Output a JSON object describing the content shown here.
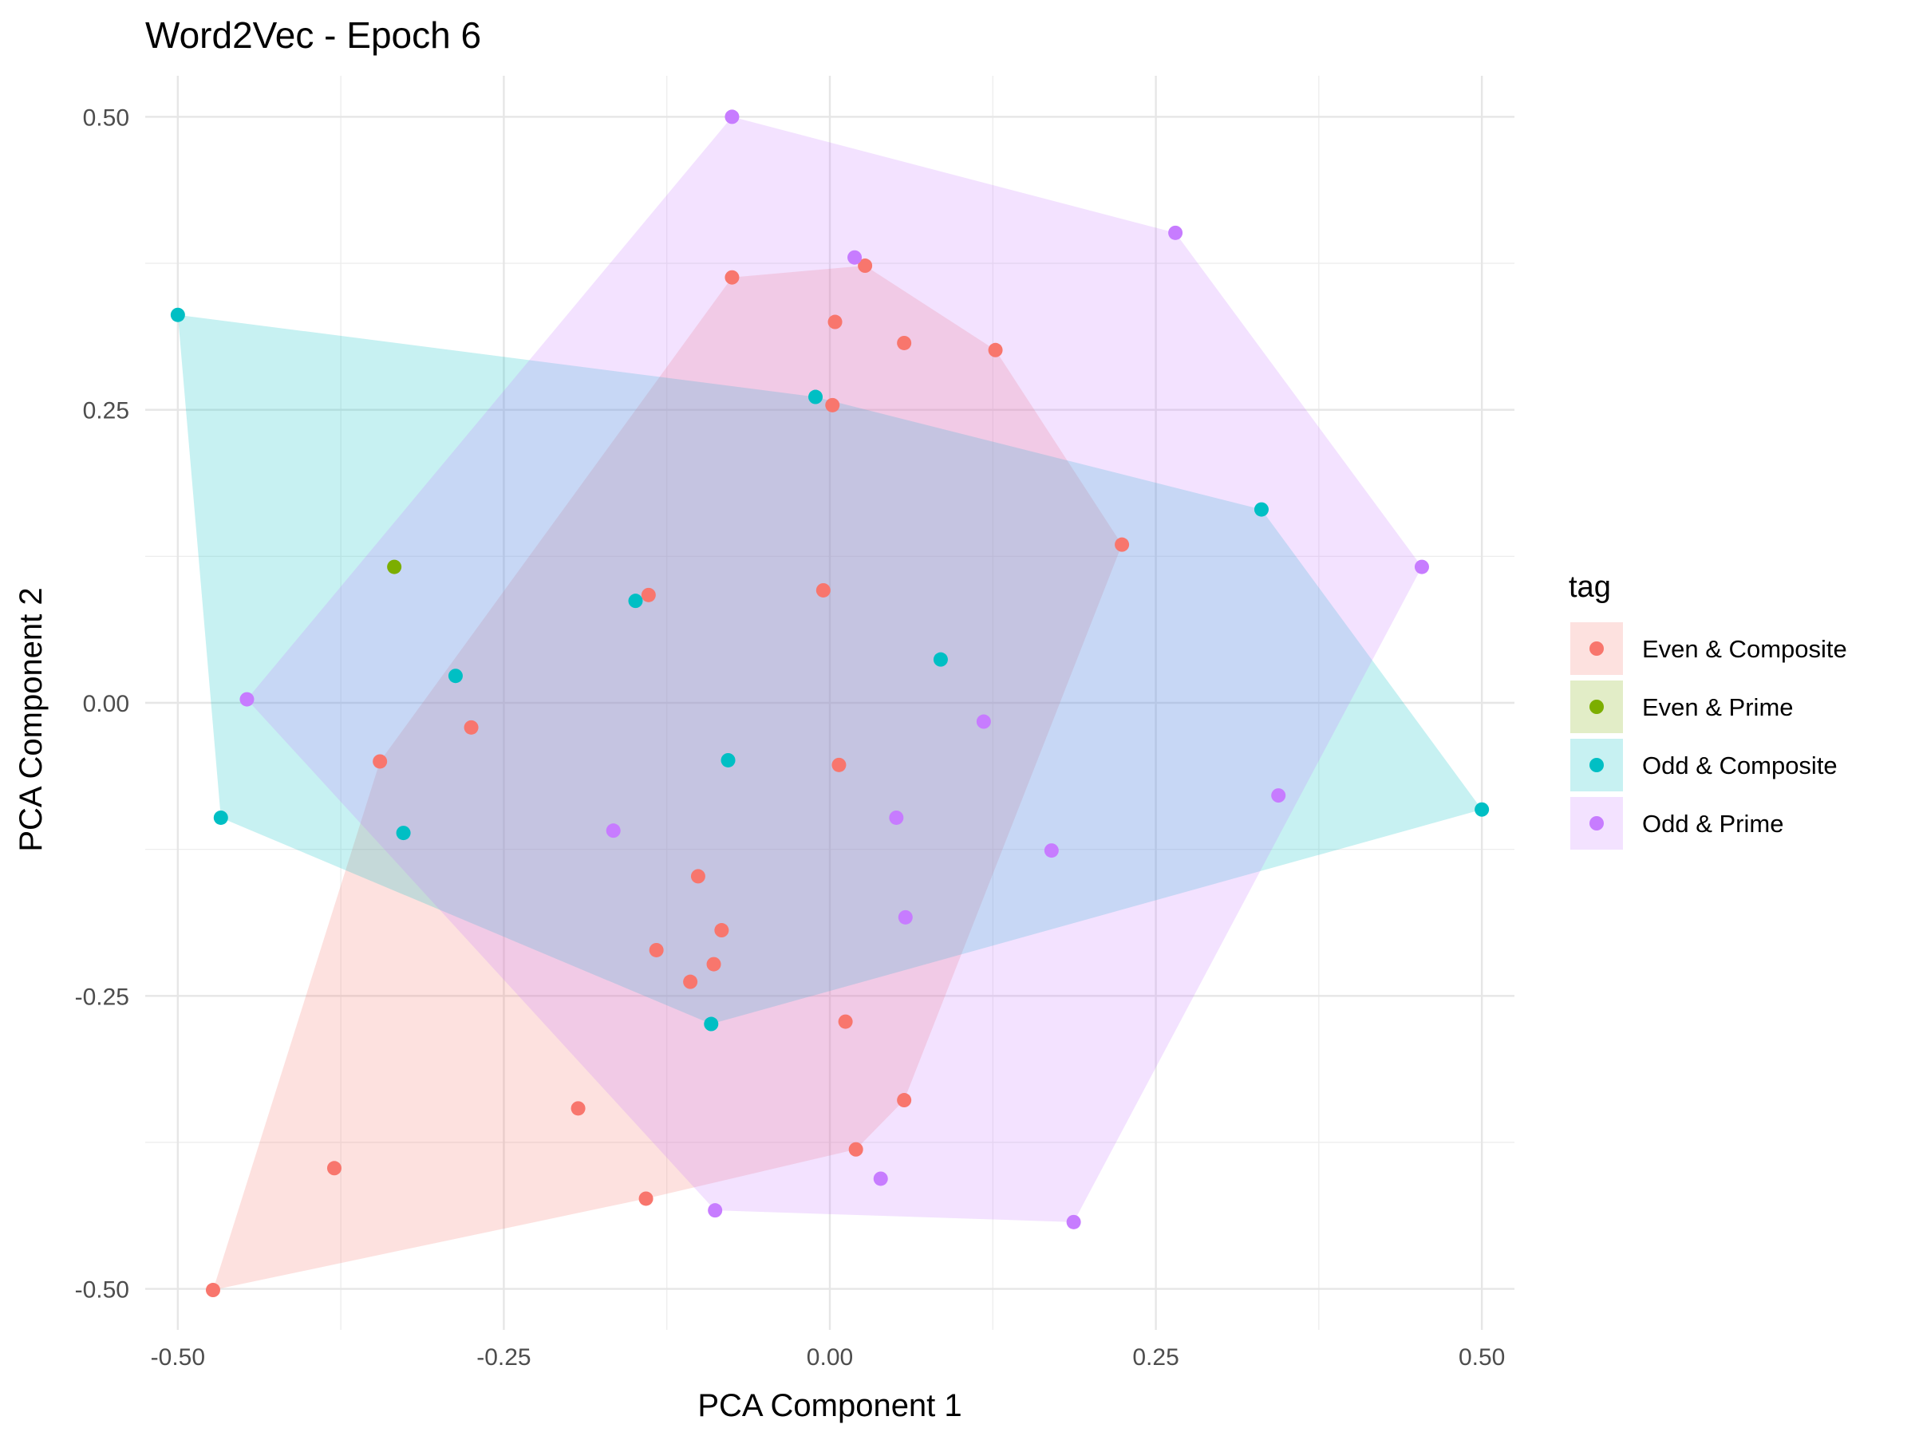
{
  "chart_data": {
    "type": "scatter",
    "title": "Word2Vec - Epoch 6",
    "xlabel": "PCA Component 1",
    "ylabel": "PCA Component 2",
    "xlim": [
      -0.525,
      0.525
    ],
    "ylim": [
      -0.535,
      0.535
    ],
    "x_ticks": [
      -0.5,
      -0.25,
      0.0,
      0.25,
      0.5
    ],
    "x_tick_labels": [
      "-0.50",
      "-0.25",
      "0.00",
      "0.25",
      "0.50"
    ],
    "y_ticks": [
      -0.5,
      -0.25,
      0.0,
      0.25,
      0.5
    ],
    "y_tick_labels": [
      "-0.50",
      "-0.25",
      "0.00",
      "0.25",
      "0.50"
    ],
    "grid": true,
    "legend_title": "tag",
    "legend_position": "right",
    "hull_opacity": 0.22,
    "series": [
      {
        "name": "Even & Composite",
        "color": "#F8766D",
        "points": [
          [
            -0.075,
            0.363
          ],
          [
            0.027,
            0.373
          ],
          [
            0.004,
            0.325
          ],
          [
            0.057,
            0.307
          ],
          [
            0.127,
            0.301
          ],
          [
            0.002,
            0.254
          ],
          [
            0.224,
            0.135
          ],
          [
            -0.139,
            0.092
          ],
          [
            -0.005,
            0.096
          ],
          [
            -0.275,
            -0.021
          ],
          [
            -0.345,
            -0.05
          ],
          [
            0.007,
            -0.053
          ],
          [
            -0.101,
            -0.148
          ],
          [
            -0.083,
            -0.194
          ],
          [
            -0.133,
            -0.211
          ],
          [
            -0.089,
            -0.223
          ],
          [
            -0.107,
            -0.238
          ],
          [
            0.012,
            -0.272
          ],
          [
            0.057,
            -0.339
          ],
          [
            -0.193,
            -0.346
          ],
          [
            0.02,
            -0.381
          ],
          [
            -0.38,
            -0.397
          ],
          [
            -0.141,
            -0.423
          ],
          [
            -0.473,
            -0.501
          ]
        ]
      },
      {
        "name": "Even & Prime",
        "color": "#7CAE00",
        "points": [
          [
            -0.334,
            0.116
          ]
        ]
      },
      {
        "name": "Odd & Composite",
        "color": "#00BFC4",
        "points": [
          [
            -0.5,
            0.331
          ],
          [
            -0.011,
            0.261
          ],
          [
            0.331,
            0.165
          ],
          [
            -0.149,
            0.087
          ],
          [
            0.085,
            0.037
          ],
          [
            -0.287,
            0.023
          ],
          [
            -0.078,
            -0.049
          ],
          [
            0.5,
            -0.091
          ],
          [
            -0.467,
            -0.098
          ],
          [
            -0.327,
            -0.111
          ],
          [
            -0.091,
            -0.274
          ]
        ]
      },
      {
        "name": "Odd & Prime",
        "color": "#C77CFF",
        "points": [
          [
            -0.075,
            0.5
          ],
          [
            0.265,
            0.401
          ],
          [
            0.019,
            0.38
          ],
          [
            0.454,
            0.116
          ],
          [
            -0.447,
            0.003
          ],
          [
            0.118,
            -0.016
          ],
          [
            0.344,
            -0.079
          ],
          [
            0.051,
            -0.098
          ],
          [
            -0.166,
            -0.109
          ],
          [
            0.17,
            -0.126
          ],
          [
            0.058,
            -0.183
          ],
          [
            0.039,
            -0.406
          ],
          [
            -0.088,
            -0.433
          ],
          [
            0.187,
            -0.443
          ]
        ]
      }
    ]
  }
}
